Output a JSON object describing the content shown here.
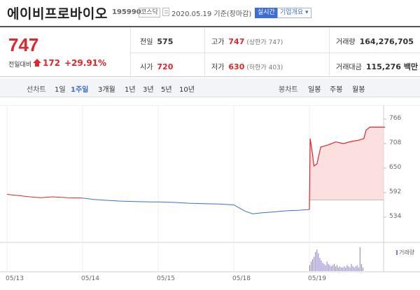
{
  "header": {
    "name": "에이비프로바이오",
    "code": "195990",
    "market": "코스닥",
    "date": "2020.05.19 기준(장마감)",
    "realtime": "실시간",
    "corp_info": "기업개요 ▾"
  },
  "quote": {
    "price": "747",
    "change_label": "전일대비",
    "change": "172",
    "change_pct": "+29.91%",
    "prev_close_label": "전일",
    "prev_close": "575",
    "high_label": "고가",
    "high": "747",
    "high_limit": "(상한가 747)",
    "volume_label": "거래량",
    "volume": "164,276,705",
    "open_label": "시가",
    "open": "720",
    "low_label": "저가",
    "low": "630",
    "low_limit": "(하한가 403)",
    "amount_label": "거래대금",
    "amount": "115,276 백만"
  },
  "period_bar": {
    "line_label": "선차트",
    "line_tabs": [
      "1일",
      "1주일",
      "3개월",
      "1년",
      "3년",
      "5년",
      "10년"
    ],
    "active_tab": "1주일",
    "candle_label": "봉차트",
    "candle_tabs": [
      "일봉",
      "주봉",
      "월봉"
    ]
  },
  "chart_data": {
    "type": "line",
    "x_ticks": [
      "05/13",
      "05/14",
      "05/15",
      "05/18",
      "05/19"
    ],
    "y_ticks": [
      766,
      708,
      650,
      592,
      534
    ],
    "ylim": [
      534,
      766
    ],
    "prev_close": 575,
    "series_red": [
      [
        0.0,
        588
      ],
      [
        0.1,
        586
      ],
      [
        0.2,
        584
      ],
      [
        0.3,
        582
      ],
      [
        0.45,
        580
      ],
      [
        0.6,
        582
      ],
      [
        0.8,
        580
      ],
      [
        1.0,
        579
      ]
    ],
    "series_blue": [
      [
        1.0,
        579
      ],
      [
        1.15,
        576
      ],
      [
        1.3,
        574
      ],
      [
        1.5,
        572
      ],
      [
        1.7,
        571
      ],
      [
        1.9,
        570
      ],
      [
        2.0,
        570
      ],
      [
        2.2,
        569
      ],
      [
        2.4,
        567
      ],
      [
        2.6,
        566
      ],
      [
        2.8,
        565
      ],
      [
        3.0,
        563
      ],
      [
        3.08,
        555
      ],
      [
        3.15,
        548
      ],
      [
        3.25,
        542
      ],
      [
        3.35,
        544
      ],
      [
        3.5,
        546
      ],
      [
        3.7,
        549
      ],
      [
        3.85,
        550
      ],
      [
        4.0,
        552
      ]
    ],
    "series_up": [
      [
        4.0,
        552
      ],
      [
        4.01,
        720
      ],
      [
        4.03,
        698
      ],
      [
        4.06,
        655
      ],
      [
        4.1,
        660
      ],
      [
        4.15,
        700
      ],
      [
        4.25,
        705
      ],
      [
        4.35,
        712
      ],
      [
        4.45,
        708
      ],
      [
        4.55,
        713
      ],
      [
        4.65,
        716
      ],
      [
        4.72,
        720
      ],
      [
        4.75,
        740
      ],
      [
        4.8,
        747
      ],
      [
        5.0,
        747
      ]
    ],
    "volume_legend": "거래량",
    "volume_bars": [
      5,
      8,
      10,
      12,
      16,
      18,
      15,
      11,
      9,
      7,
      6,
      5,
      8,
      6,
      5,
      4,
      5,
      6,
      4,
      5,
      3,
      4,
      3,
      3,
      4,
      3,
      5,
      4,
      3,
      6,
      4,
      3,
      4,
      5,
      3,
      20,
      6,
      3
    ]
  }
}
